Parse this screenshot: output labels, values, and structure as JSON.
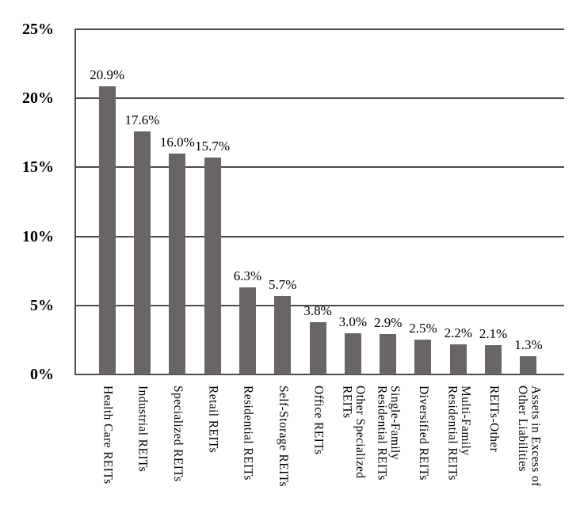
{
  "chart_data": {
    "type": "bar",
    "title": "",
    "xlabel": "",
    "ylabel": "",
    "ylim": [
      0,
      25
    ],
    "grid": true,
    "legend": false,
    "bar_color": "#696564",
    "line_color": "#4d4b4b",
    "y_ticks": [
      {
        "value": 25,
        "label": "25%"
      },
      {
        "value": 20,
        "label": "20%"
      },
      {
        "value": 15,
        "label": "15%"
      },
      {
        "value": 10,
        "label": "10%"
      },
      {
        "value": 5,
        "label": "5%"
      },
      {
        "value": 0,
        "label": "0%"
      }
    ],
    "categories": [
      "Health Care REITs",
      "Industrial REITs",
      "Specialized REITs",
      "Retail REITs",
      "Residential REITs",
      "Self-Storage REITs",
      "Office REITs",
      "Other Specialized\nREITs",
      "Single-Family\nResidential REITs",
      "Diversified REITs",
      "Multi-Family\nResidential REITs",
      "REITs-Other",
      "Assets in Excess of\nOther Liabilities"
    ],
    "values": [
      20.9,
      17.6,
      16.0,
      15.7,
      6.3,
      5.7,
      3.8,
      3.0,
      2.9,
      2.5,
      2.2,
      2.1,
      1.3
    ],
    "data_labels": [
      "20.9%",
      "17.6%",
      "16.0%",
      "15.7%",
      "6.3%",
      "5.7%",
      "3.8%",
      "3.0%",
      "2.9%",
      "2.5%",
      "2.2%",
      "2.1%",
      "1.3%"
    ]
  }
}
